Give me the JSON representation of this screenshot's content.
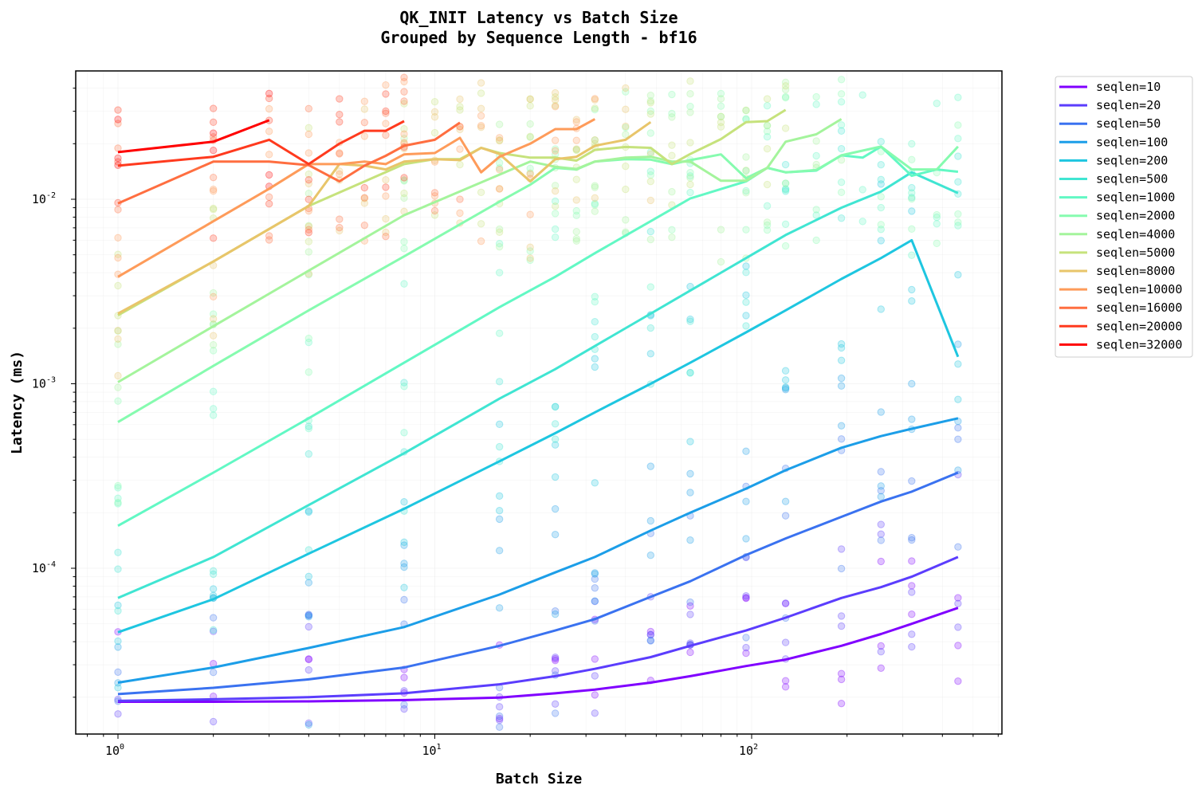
{
  "chart_data": {
    "type": "line",
    "title": "QK_INIT Latency vs Batch Size",
    "subtitle": "Grouped by Sequence Length - bf16",
    "xlabel": "Batch Size",
    "ylabel": "Latency (ms)",
    "xscale": "log",
    "yscale": "log",
    "xlim": [
      0.75,
      520
    ],
    "ylim": [
      1.45e-05,
      0.05
    ],
    "x_ticks": [
      "10^0",
      "10^1",
      "10^2"
    ],
    "y_ticks": [
      "10^-4",
      "10^-3",
      "10^-2"
    ],
    "grid": true,
    "legend_position": "outside upper right",
    "scatter_overlay": "semi-transparent points at each batch size for all configurations, colored by seqlen",
    "series": [
      {
        "name": "seqlen=10",
        "color": "#8000ff",
        "x": [
          1,
          2,
          4,
          8,
          16,
          24,
          32,
          48,
          64,
          96,
          128,
          192,
          256,
          320,
          448
        ],
        "values": [
          1.89e-05,
          1.89e-05,
          1.9e-05,
          1.93e-05,
          1.99e-05,
          2.1e-05,
          2.2e-05,
          2.4e-05,
          2.6e-05,
          2.95e-05,
          3.2e-05,
          3.8e-05,
          4.4e-05,
          5e-05,
          6.1e-05
        ]
      },
      {
        "name": "seqlen=20",
        "color": "#5b3dfd",
        "x": [
          1,
          2,
          4,
          8,
          16,
          24,
          32,
          48,
          64,
          96,
          128,
          192,
          256,
          320,
          448
        ],
        "values": [
          1.91e-05,
          1.95e-05,
          2e-05,
          2.1e-05,
          2.35e-05,
          2.6e-05,
          2.85e-05,
          3.3e-05,
          3.8e-05,
          4.6e-05,
          5.4e-05,
          6.9e-05,
          7.9e-05,
          9e-05,
          0.000115
        ]
      },
      {
        "name": "seqlen=50",
        "color": "#3a72f0",
        "x": [
          1,
          2,
          4,
          8,
          16,
          24,
          32,
          48,
          64,
          96,
          128,
          192,
          256,
          320,
          448
        ],
        "values": [
          2.08e-05,
          2.25e-05,
          2.5e-05,
          2.9e-05,
          3.8e-05,
          4.6e-05,
          5.3e-05,
          7e-05,
          8.5e-05,
          0.000118,
          0.000145,
          0.00019,
          0.00023,
          0.00026,
          0.00033
        ]
      },
      {
        "name": "seqlen=100",
        "color": "#1c9ee8",
        "x": [
          1,
          2,
          4,
          8,
          16,
          24,
          32,
          48,
          64,
          96,
          128,
          192,
          256,
          320,
          448
        ],
        "values": [
          2.4e-05,
          2.9e-05,
          3.7e-05,
          4.8e-05,
          7.2e-05,
          9.5e-05,
          0.000115,
          0.00016,
          0.0002,
          0.00027,
          0.00034,
          0.00045,
          0.00052,
          0.00057,
          0.00065
        ]
      },
      {
        "name": "seqlen=200",
        "color": "#1ec6e0",
        "x": [
          1,
          2,
          4,
          8,
          16,
          24,
          32,
          48,
          64,
          96,
          128,
          192,
          256,
          320,
          448
        ],
        "values": [
          4.5e-05,
          6.8e-05,
          0.00012,
          0.00021,
          0.00038,
          0.00054,
          0.0007,
          0.001,
          0.0013,
          0.0019,
          0.0025,
          0.0037,
          0.0048,
          0.006,
          0.0014
        ]
      },
      {
        "name": "seqlen=500",
        "color": "#40e5d2",
        "x": [
          1,
          2,
          4,
          8,
          16,
          24,
          32,
          48,
          64,
          96,
          128,
          192,
          256,
          320,
          448
        ],
        "values": [
          6.9e-05,
          0.000115,
          0.00022,
          0.00042,
          0.00083,
          0.0012,
          0.0016,
          0.0024,
          0.0032,
          0.0048,
          0.0064,
          0.009,
          0.011,
          0.014,
          0.0108
        ]
      },
      {
        "name": "seqlen=1000",
        "color": "#62f8c4",
        "x": [
          1,
          2,
          4,
          8,
          16,
          24,
          32,
          48,
          64,
          96,
          112,
          128,
          160,
          192,
          224,
          256,
          320,
          384,
          448
        ],
        "values": [
          0.00017,
          0.00033,
          0.00065,
          0.0013,
          0.0026,
          0.0038,
          0.0051,
          0.0076,
          0.0101,
          0.0125,
          0.0148,
          0.014,
          0.0143,
          0.0173,
          0.0168,
          0.0193,
          0.0134,
          0.0145,
          0.0141
        ]
      },
      {
        "name": "seqlen=2000",
        "color": "#86fbaf",
        "x": [
          1,
          2,
          4,
          8,
          16,
          20,
          24,
          28,
          32,
          40,
          48,
          56,
          64,
          80,
          96,
          112,
          128,
          160,
          192,
          256,
          320,
          384,
          448
        ],
        "values": [
          0.00062,
          0.00125,
          0.0025,
          0.0049,
          0.0097,
          0.012,
          0.0148,
          0.0145,
          0.016,
          0.0165,
          0.0164,
          0.0155,
          0.0163,
          0.0175,
          0.013,
          0.0148,
          0.014,
          0.0144,
          0.0173,
          0.0193,
          0.0145,
          0.0145,
          0.0193
        ]
      },
      {
        "name": "seqlen=4000",
        "color": "#a4f49c",
        "x": [
          1,
          2,
          4,
          8,
          16,
          20,
          24,
          28,
          32,
          40,
          48,
          56,
          64,
          80,
          96,
          112,
          128,
          160,
          192
        ],
        "values": [
          0.00102,
          0.00205,
          0.0041,
          0.0082,
          0.0136,
          0.016,
          0.015,
          0.0146,
          0.016,
          0.0168,
          0.017,
          0.016,
          0.016,
          0.0126,
          0.0126,
          0.0148,
          0.0205,
          0.0225,
          0.0272
        ]
      },
      {
        "name": "seqlen=5000",
        "color": "#c6e27c",
        "x": [
          1,
          2,
          4,
          8,
          10,
          12,
          14,
          16,
          20,
          24,
          28,
          32,
          40,
          48,
          56,
          64,
          80,
          96,
          112,
          128
        ],
        "values": [
          0.00235,
          0.0046,
          0.0092,
          0.0155,
          0.0165,
          0.0165,
          0.019,
          0.0178,
          0.0168,
          0.0168,
          0.0162,
          0.0185,
          0.0192,
          0.019,
          0.0155,
          0.0176,
          0.0212,
          0.0262,
          0.0265,
          0.0305
        ]
      },
      {
        "name": "seqlen=8000",
        "color": "#e8c56a",
        "x": [
          1,
          2,
          4,
          5,
          6,
          7,
          8,
          10,
          12,
          14,
          16,
          20,
          24,
          28,
          32,
          40,
          48
        ],
        "values": [
          0.0024,
          0.0046,
          0.0092,
          0.0155,
          0.0152,
          0.0145,
          0.016,
          0.0165,
          0.0163,
          0.019,
          0.0176,
          0.0125,
          0.0165,
          0.017,
          0.0195,
          0.021,
          0.0262
        ]
      },
      {
        "name": "seqlen=10000",
        "color": "#fe9b5a",
        "x": [
          1,
          2,
          3,
          4,
          5,
          6,
          7,
          8,
          10,
          12,
          14,
          16,
          20,
          24,
          28,
          32
        ],
        "values": [
          0.0038,
          0.0076,
          0.0114,
          0.0155,
          0.0155,
          0.016,
          0.0155,
          0.0175,
          0.0178,
          0.0215,
          0.014,
          0.017,
          0.02,
          0.024,
          0.024,
          0.0272
        ]
      },
      {
        "name": "seqlen=16000",
        "color": "#ff6e40",
        "x": [
          1,
          2,
          3,
          4,
          5,
          6,
          7,
          8,
          10,
          12
        ],
        "values": [
          0.0095,
          0.016,
          0.016,
          0.0153,
          0.0125,
          0.0152,
          0.0172,
          0.0195,
          0.021,
          0.026
        ]
      },
      {
        "name": "seqlen=20000",
        "color": "#ff3a1e",
        "x": [
          1,
          2,
          3,
          4,
          5,
          6,
          7,
          8
        ],
        "values": [
          0.0152,
          0.017,
          0.021,
          0.0155,
          0.02,
          0.0235,
          0.0235,
          0.0265
        ]
      },
      {
        "name": "seqlen=32000",
        "color": "#ff0000",
        "x": [
          1,
          2,
          3
        ],
        "values": [
          0.018,
          0.0205,
          0.0268
        ]
      }
    ]
  },
  "legend": {
    "items": [
      "seqlen=10",
      "seqlen=20",
      "seqlen=50",
      "seqlen=100",
      "seqlen=200",
      "seqlen=500",
      "seqlen=1000",
      "seqlen=2000",
      "seqlen=4000",
      "seqlen=5000",
      "seqlen=8000",
      "seqlen=10000",
      "seqlen=16000",
      "seqlen=20000",
      "seqlen=32000"
    ]
  },
  "labels": {
    "title": "QK_INIT Latency vs Batch Size",
    "subtitle": "Grouped by Sequence Length - bf16",
    "xlabel": "Batch Size",
    "ylabel": "Latency (ms)",
    "xtick_base": "10",
    "xtick_exps": [
      "0",
      "1",
      "2"
    ],
    "ytick_base": "10",
    "ytick_exps": [
      "-4",
      "-3",
      "-2"
    ]
  }
}
